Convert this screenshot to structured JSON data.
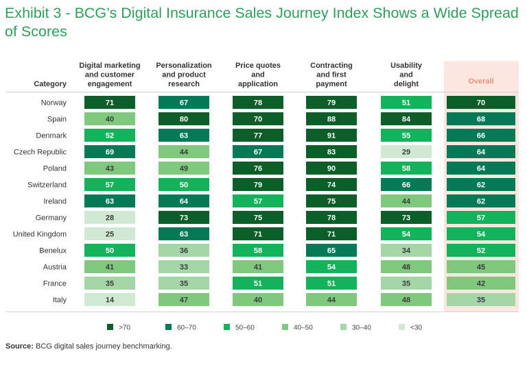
{
  "title": "Exhibit 3 - BCG’s Digital Insurance Sales Journey Index Shows a Wide Spread of Scores",
  "source_label": "Source:",
  "source_text": " BCG digital sales journey benchmarking.",
  "chart_data": {
    "type": "heatmap",
    "category_header": "Category",
    "columns": [
      [
        "Digital marketing",
        "and customer",
        "engagement"
      ],
      [
        "Personalization",
        "and product",
        "research"
      ],
      [
        "Price quotes",
        "and",
        "application"
      ],
      [
        "Contracting",
        "and first",
        "payment"
      ],
      [
        "Usability",
        "and",
        "delight"
      ],
      [
        "Overall"
      ]
    ],
    "rows": [
      {
        "name": "Norway",
        "values": [
          71,
          67,
          78,
          79,
          51,
          70
        ]
      },
      {
        "name": "Spain",
        "values": [
          40,
          80,
          70,
          88,
          84,
          68
        ]
      },
      {
        "name": "Denmark",
        "values": [
          52,
          63,
          77,
          91,
          55,
          66
        ]
      },
      {
        "name": "Czech Republic",
        "values": [
          69,
          44,
          67,
          83,
          29,
          64
        ]
      },
      {
        "name": "Poland",
        "values": [
          43,
          49,
          76,
          90,
          58,
          64
        ]
      },
      {
        "name": "Switzerland",
        "values": [
          57,
          50,
          79,
          74,
          66,
          62
        ]
      },
      {
        "name": "Ireland",
        "values": [
          63,
          64,
          57,
          75,
          44,
          62
        ]
      },
      {
        "name": "Germany",
        "values": [
          28,
          73,
          75,
          78,
          73,
          57
        ]
      },
      {
        "name": "United Kingdom",
        "values": [
          25,
          63,
          71,
          71,
          54,
          54
        ]
      },
      {
        "name": "Benelux",
        "values": [
          50,
          36,
          58,
          65,
          34,
          52
        ]
      },
      {
        "name": "Austria",
        "values": [
          41,
          33,
          41,
          54,
          48,
          45
        ]
      },
      {
        "name": "France",
        "values": [
          35,
          35,
          51,
          51,
          35,
          42
        ]
      },
      {
        "name": "Italy",
        "values": [
          14,
          47,
          40,
          44,
          48,
          35
        ]
      }
    ],
    "legend": [
      {
        "label": ">70",
        "color": "#0b5e27",
        "min": 70
      },
      {
        "label": "60–70",
        "color": "#037a55",
        "min": 60
      },
      {
        "label": "50–60",
        "color": "#14b25b",
        "min": 50
      },
      {
        "label": "40–50",
        "color": "#7fc97f",
        "min": 40
      },
      {
        "label": "30–40",
        "color": "#a4d6a8",
        "min": 30
      },
      {
        "label": "<30",
        "color": "#d0e9d2",
        "min": 0
      }
    ],
    "overall_highlight_color": "#fbe6e0"
  }
}
